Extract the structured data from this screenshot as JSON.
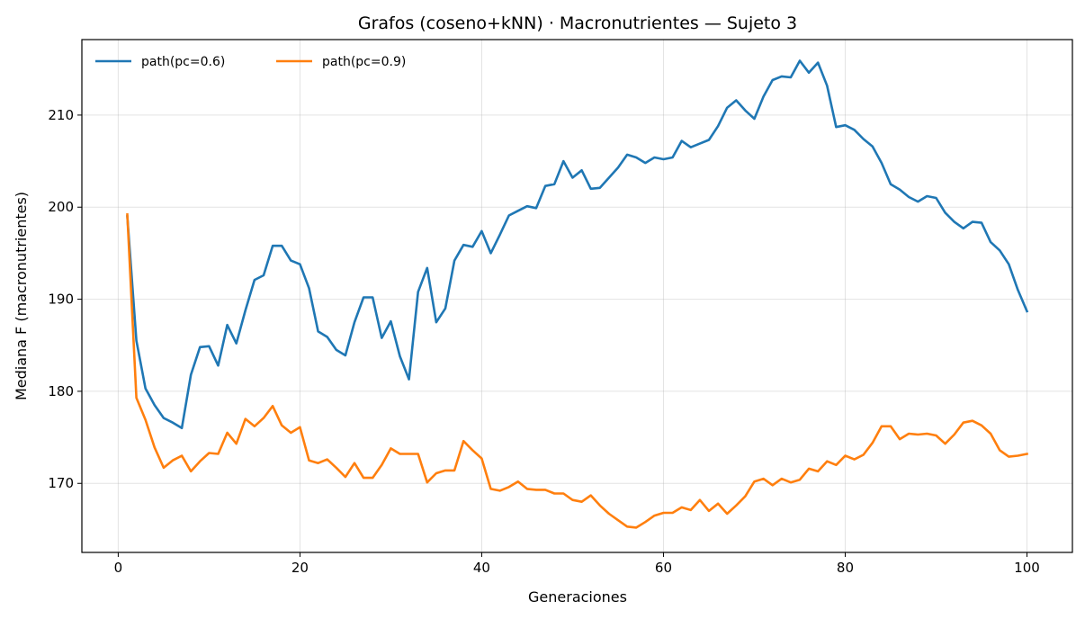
{
  "chart_data": {
    "type": "line",
    "title": "Grafos (coseno+kNN) · Macronutrientes — Sujeto 3",
    "xlabel": "Generaciones",
    "ylabel": "Mediana F (macronutrientes)",
    "xlim": [
      -4,
      105
    ],
    "ylim": [
      162.5,
      218.2
    ],
    "xticks": [
      0,
      20,
      40,
      60,
      80,
      100
    ],
    "yticks": [
      170,
      180,
      190,
      200,
      210
    ],
    "grid": true,
    "legend_position": "top-left",
    "x": [
      1,
      2,
      3,
      4,
      5,
      6,
      7,
      8,
      9,
      10,
      11,
      12,
      13,
      14,
      15,
      16,
      17,
      18,
      19,
      20,
      21,
      22,
      23,
      24,
      25,
      26,
      27,
      28,
      29,
      30,
      31,
      32,
      33,
      34,
      35,
      36,
      37,
      38,
      39,
      40,
      41,
      42,
      43,
      44,
      45,
      46,
      47,
      48,
      49,
      50,
      51,
      52,
      53,
      54,
      55,
      56,
      57,
      58,
      59,
      60,
      61,
      62,
      63,
      64,
      65,
      66,
      67,
      68,
      69,
      70,
      71,
      72,
      73,
      74,
      75,
      76,
      77,
      78,
      79,
      80,
      81,
      82,
      83,
      84,
      85,
      86,
      87,
      88,
      89,
      90,
      91,
      92,
      93,
      94,
      95,
      96,
      97,
      98,
      99,
      100
    ],
    "series": [
      {
        "name": "path(pc=0.6)",
        "color": "#1f77b4",
        "values": [
          199.0,
          185.5,
          180.3,
          178.5,
          177.1,
          176.6,
          176.0,
          181.8,
          184.8,
          184.9,
          182.8,
          187.2,
          185.2,
          188.8,
          192.1,
          192.6,
          195.8,
          195.8,
          194.2,
          193.8,
          191.2,
          186.5,
          185.9,
          184.5,
          183.9,
          187.5,
          190.2,
          190.2,
          185.8,
          187.6,
          183.8,
          181.3,
          190.8,
          193.4,
          187.5,
          189.0,
          194.2,
          195.9,
          195.7,
          197.4,
          195.0,
          197.0,
          199.1,
          199.6,
          200.1,
          199.9,
          202.3,
          202.5,
          205.0,
          203.2,
          204.0,
          202.0,
          202.1,
          203.2,
          204.3,
          205.7,
          205.4,
          204.8,
          205.4,
          205.2,
          205.4,
          207.2,
          206.5,
          206.9,
          207.3,
          208.8,
          210.8,
          211.6,
          210.5,
          209.6,
          212.0,
          213.8,
          214.2,
          214.1,
          215.9,
          214.6,
          215.7,
          213.2,
          208.7,
          208.9,
          208.4,
          207.4,
          206.6,
          204.8,
          202.5,
          201.9,
          201.1,
          200.6,
          201.2,
          201.0,
          199.4,
          198.4,
          197.7,
          198.4,
          198.3,
          196.2,
          195.3,
          193.8,
          191.0,
          188.7
        ]
      },
      {
        "name": "path(pc=0.9)",
        "color": "#ff7f0e",
        "values": [
          199.2,
          179.3,
          176.9,
          173.9,
          171.7,
          172.5,
          173.0,
          171.3,
          172.4,
          173.3,
          173.2,
          175.5,
          174.3,
          177.0,
          176.2,
          177.1,
          178.4,
          176.3,
          175.5,
          176.1,
          172.5,
          172.2,
          172.6,
          171.7,
          170.7,
          172.2,
          170.6,
          170.6,
          172.0,
          173.8,
          173.2,
          173.2,
          173.2,
          170.1,
          171.1,
          171.4,
          171.4,
          174.6,
          173.6,
          172.7,
          169.4,
          169.2,
          169.6,
          170.2,
          169.4,
          169.3,
          169.3,
          168.9,
          168.9,
          168.2,
          168.0,
          168.7,
          167.6,
          166.7,
          166.0,
          165.3,
          165.2,
          165.8,
          166.5,
          166.8,
          166.8,
          167.4,
          167.1,
          168.2,
          167.0,
          167.8,
          166.7,
          167.6,
          168.6,
          170.2,
          170.5,
          169.8,
          170.5,
          170.1,
          170.4,
          171.6,
          171.3,
          172.4,
          172.0,
          173.0,
          172.6,
          173.1,
          174.4,
          176.2,
          176.2,
          174.8,
          175.4,
          175.3,
          175.4,
          175.2,
          174.3,
          175.3,
          176.6,
          176.8,
          176.3,
          175.4,
          173.6,
          172.9,
          173.0,
          173.2
        ]
      }
    ]
  }
}
